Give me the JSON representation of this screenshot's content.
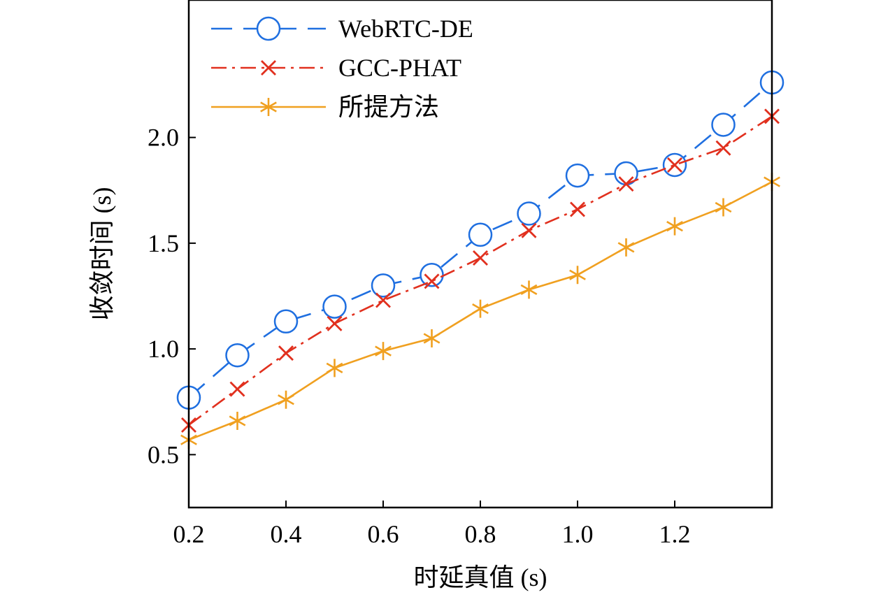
{
  "chart_data": {
    "type": "line",
    "title": "",
    "xlabel": "时延真值 (s)",
    "ylabel": "收敛时间 (s)",
    "xlim": [
      0.2,
      1.4
    ],
    "ylim": [
      0.25,
      2.65
    ],
    "xticks": [
      "0.2",
      "0.4",
      "0.6",
      "0.8",
      "1.0",
      "1.2"
    ],
    "yticks": [
      "0.5",
      "1.0",
      "1.5",
      "2.0"
    ],
    "grid": false,
    "legend_position": "top-left",
    "x": [
      0.2,
      0.3,
      0.4,
      0.5,
      0.6,
      0.7,
      0.8,
      0.9,
      1.0,
      1.1,
      1.2,
      1.3,
      1.4
    ],
    "series": [
      {
        "name": "WebRTC-DE",
        "color": "#1f6fe0",
        "line_style": "dashed",
        "marker": "circle",
        "values": [
          0.77,
          0.97,
          1.13,
          1.2,
          1.3,
          1.35,
          1.54,
          1.64,
          1.82,
          1.83,
          1.87,
          2.06,
          2.26
        ]
      },
      {
        "name": "GCC-PHAT",
        "color": "#e1301e",
        "line_style": "dash-dot",
        "marker": "x",
        "values": [
          0.64,
          0.81,
          0.98,
          1.12,
          1.23,
          1.32,
          1.43,
          1.56,
          1.66,
          1.78,
          1.87,
          1.95,
          2.1
        ]
      },
      {
        "name": "所提方法",
        "color": "#f0a020",
        "line_style": "solid",
        "marker": "asterisk",
        "values": [
          0.57,
          0.66,
          0.76,
          0.91,
          0.99,
          1.05,
          1.19,
          1.28,
          1.35,
          1.48,
          1.58,
          1.67,
          1.79
        ]
      }
    ]
  }
}
